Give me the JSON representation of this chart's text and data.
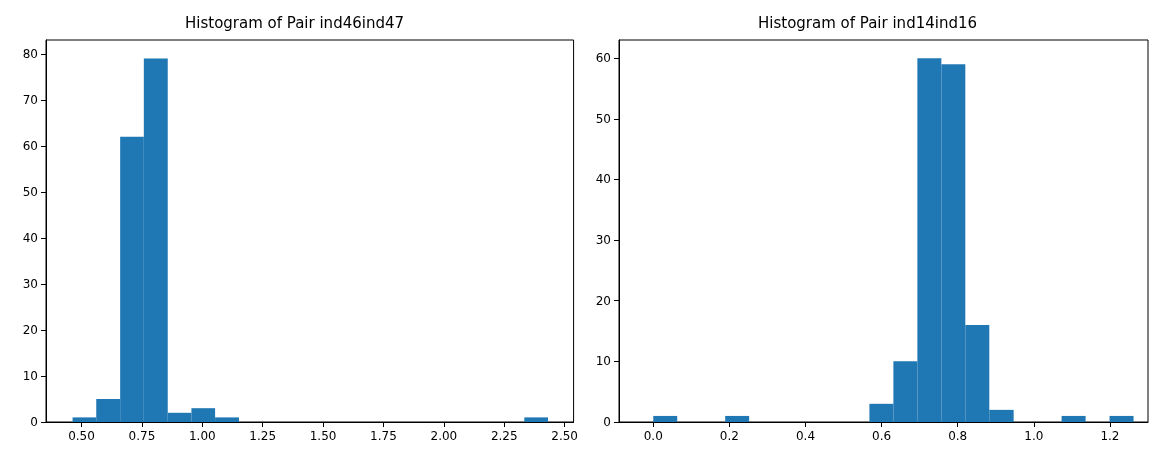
{
  "chart_data": [
    {
      "type": "histogram",
      "title": "Histogram of Pair ind46ind47",
      "color": "#1f77b4",
      "bins": [
        0.463,
        0.561,
        0.66,
        0.758,
        0.857,
        0.955,
        1.053,
        1.152,
        1.25,
        1.349,
        1.447,
        1.545,
        1.644,
        1.742,
        1.841,
        1.939,
        2.037,
        2.136,
        2.234,
        2.333,
        2.431
      ],
      "values": [
        1,
        5,
        62,
        79,
        2,
        3,
        1,
        0,
        0,
        0,
        0,
        0,
        0,
        0,
        0,
        0,
        0,
        0,
        0,
        1
      ],
      "xlim": [
        0.353,
        2.537
      ],
      "xticks": [
        {
          "value": 0.5,
          "label": "0.50"
        },
        {
          "value": 0.75,
          "label": "0.75"
        },
        {
          "value": 1,
          "label": "1.00"
        },
        {
          "value": 1.25,
          "label": "1.25"
        },
        {
          "value": 1.5,
          "label": "1.50"
        },
        {
          "value": 1.75,
          "label": "1.75"
        },
        {
          "value": 2,
          "label": "2.00"
        },
        {
          "value": 2.25,
          "label": "2.25"
        },
        {
          "value": 2.5,
          "label": "2.50"
        }
      ],
      "ylim": [
        0,
        83
      ],
      "yticks": [
        0,
        10,
        20,
        30,
        40,
        50,
        60,
        70,
        80
      ],
      "grid": false
    },
    {
      "type": "histogram",
      "title": "Histogram of Pair ind14ind16",
      "color": "#1f77b4",
      "bins": [
        0,
        0.063,
        0.126,
        0.189,
        0.252,
        0.316,
        0.379,
        0.442,
        0.505,
        0.568,
        0.631,
        0.694,
        0.757,
        0.82,
        0.883,
        0.947,
        1.01,
        1.073,
        1.136,
        1.199,
        1.262
      ],
      "values": [
        1,
        0,
        0,
        1,
        0,
        0,
        0,
        0,
        0,
        3,
        10,
        60,
        59,
        16,
        2,
        0,
        0,
        1,
        0,
        1
      ],
      "xlim": [
        -0.09,
        1.3
      ],
      "xticks": [
        {
          "value": 0,
          "label": "0.0"
        },
        {
          "value": 0.2,
          "label": "0.2"
        },
        {
          "value": 0.4,
          "label": "0.4"
        },
        {
          "value": 0.6,
          "label": "0.6"
        },
        {
          "value": 0.8,
          "label": "0.8"
        },
        {
          "value": 1,
          "label": "1.0"
        },
        {
          "value": 1.2,
          "label": "1.2"
        }
      ],
      "ylim": [
        0,
        63
      ],
      "yticks": [
        0,
        10,
        20,
        30,
        40,
        50,
        60
      ],
      "grid": false
    }
  ]
}
